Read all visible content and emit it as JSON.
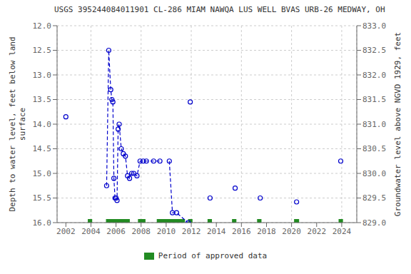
{
  "chart_data": {
    "type": "line",
    "title": "USGS 395244084011901 CL-286 MIAM NAWQA LUS WELL BVAS URB-26 MEDWAY, OH",
    "ylabel": "Depth to water level, feet below land\nsurface",
    "y2label": "Groundwater level above NGVD 1929, feet",
    "ylim": [
      16.0,
      12.0
    ],
    "yticks": [
      {
        "value": 12.0,
        "label": "12.0"
      },
      {
        "value": 12.5,
        "label": "12.5"
      },
      {
        "value": 13.0,
        "label": "13.0"
      },
      {
        "value": 13.5,
        "label": "13.5"
      },
      {
        "value": 14.0,
        "label": "14.0"
      },
      {
        "value": 14.5,
        "label": "14.5"
      },
      {
        "value": 15.0,
        "label": "15.0"
      },
      {
        "value": 15.5,
        "label": "15.5"
      },
      {
        "value": 16.0,
        "label": "16.0"
      }
    ],
    "y2lim": [
      829.0,
      833.0
    ],
    "y2ticks": [
      {
        "value": 829.0,
        "label": "829.0"
      },
      {
        "value": 829.5,
        "label": "829.5"
      },
      {
        "value": 830.0,
        "label": "830.0"
      },
      {
        "value": 830.5,
        "label": "830.5"
      },
      {
        "value": 831.0,
        "label": "831.0"
      },
      {
        "value": 831.5,
        "label": "831.5"
      },
      {
        "value": 832.0,
        "label": "832.0"
      },
      {
        "value": 832.5,
        "label": "832.5"
      },
      {
        "value": 833.0,
        "label": "833.0"
      }
    ],
    "xlim": [
      2001.3,
      2025.2
    ],
    "xticks": [
      2002,
      2004,
      2006,
      2008,
      2010,
      2012,
      2014,
      2016,
      2018,
      2020,
      2022,
      2024
    ],
    "grid": true,
    "legend": "bottom",
    "series": [
      {
        "x": [
          2002.0
        ],
        "values": [
          13.85
        ],
        "color": "#0000CC",
        "line_style": "dashed",
        "marker": "circle"
      },
      {
        "x": [
          2005.25,
          2005.42,
          2005.58,
          2005.67,
          2005.75,
          2005.83,
          2005.92,
          2006.0,
          2006.08,
          2006.17,
          2006.25,
          2006.42,
          2006.58,
          2006.75,
          2006.92,
          2007.08,
          2007.25,
          2007.42,
          2007.67,
          2007.92,
          2008.17,
          2008.42,
          2009.0,
          2009.5
        ],
        "values": [
          15.25,
          12.5,
          13.3,
          13.5,
          13.55,
          15.1,
          15.5,
          15.5,
          15.55,
          14.1,
          14.0,
          14.5,
          14.6,
          14.65,
          15.05,
          15.1,
          15.0,
          15.0,
          15.05,
          14.75,
          14.75,
          14.75,
          14.75,
          14.75
        ],
        "color": "#0000CC",
        "line_style": "dashed",
        "marker": "circle"
      },
      {
        "x": [
          2010.25,
          2010.5,
          2010.83,
          2011.75
        ],
        "values": [
          14.75,
          15.8,
          15.8,
          16.0
        ],
        "color": "#0000CC",
        "line_style": "dashed",
        "marker": "circle"
      },
      {
        "x": [
          2011.92
        ],
        "values": [
          13.55
        ],
        "color": "#0000CC",
        "line_style": "dashed",
        "marker": "circle"
      },
      {
        "x": [
          2013.5
        ],
        "values": [
          15.5
        ],
        "color": "#0000CC",
        "line_style": "dashed",
        "marker": "circle"
      },
      {
        "x": [
          2015.5
        ],
        "values": [
          15.3
        ],
        "color": "#0000CC",
        "line_style": "dashed",
        "marker": "circle"
      },
      {
        "x": [
          2017.5
        ],
        "values": [
          15.5
        ],
        "color": "#0000CC",
        "line_style": "dashed",
        "marker": "circle"
      },
      {
        "x": [
          2020.4
        ],
        "values": [
          15.58
        ],
        "color": "#0000CC",
        "line_style": "dashed",
        "marker": "circle"
      },
      {
        "x": [
          2023.92
        ],
        "values": [
          14.75
        ],
        "color": "#0000CC",
        "line_style": "dashed",
        "marker": "circle"
      },
      {
        "name": "Period of approved data",
        "type": "span",
        "color": "#228B22",
        "ranges": [
          [
            2003.75,
            2004.1
          ],
          [
            2005.2,
            2007.1
          ],
          [
            2007.75,
            2008.35
          ],
          [
            2009.25,
            2011.5
          ],
          [
            2011.75,
            2012.1
          ],
          [
            2013.3,
            2013.65
          ],
          [
            2015.25,
            2015.6
          ],
          [
            2017.25,
            2017.6
          ],
          [
            2020.2,
            2020.6
          ],
          [
            2023.75,
            2024.1
          ]
        ]
      }
    ]
  }
}
